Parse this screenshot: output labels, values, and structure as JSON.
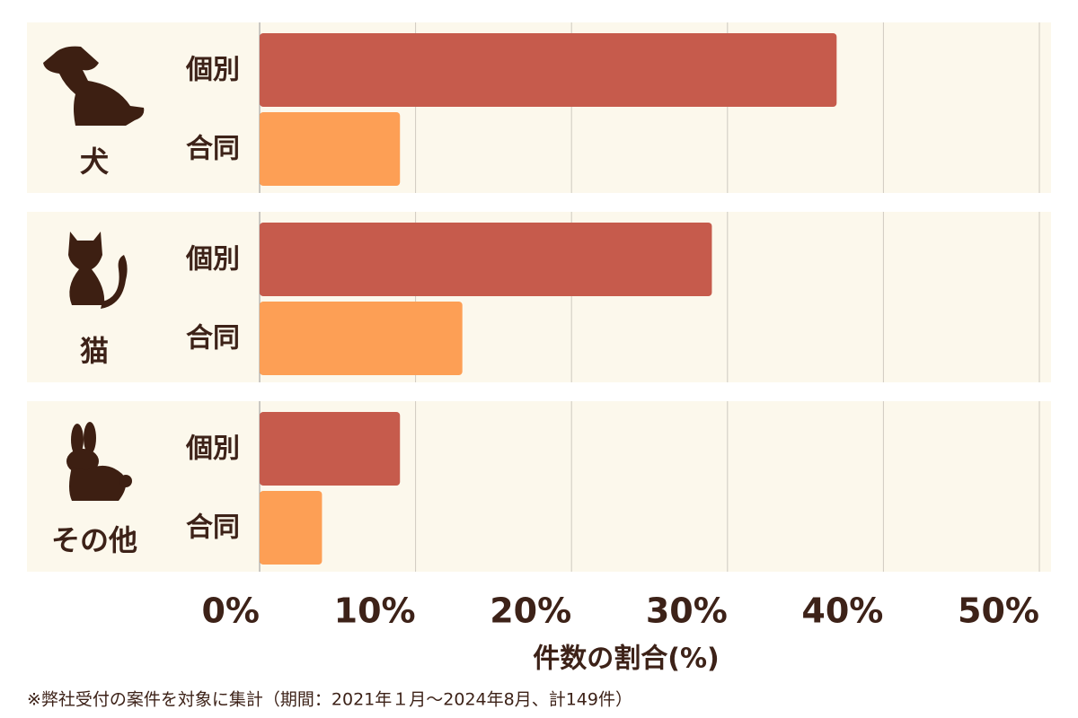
{
  "chart_data": {
    "type": "bar",
    "orientation": "horizontal",
    "categories": [
      "犬",
      "猫",
      "その他"
    ],
    "series": [
      {
        "name": "個別",
        "color": "#c65b4c",
        "values": [
          37,
          29,
          9
        ]
      },
      {
        "name": "合同",
        "color": "#fd9f55",
        "values": [
          9,
          13,
          4
        ]
      }
    ],
    "xlim": [
      0,
      50
    ],
    "xticks": [
      {
        "value": 0,
        "label": "0%"
      },
      {
        "value": 10,
        "label": "10%"
      },
      {
        "value": 20,
        "label": "20%"
      },
      {
        "value": 30,
        "label": "30%"
      },
      {
        "value": 40,
        "label": "40%"
      },
      {
        "value": 50,
        "label": "50%"
      }
    ],
    "grid": true,
    "x_label": "件数の割合(%)",
    "note": "※弊社受付の案件を対象に集計（期間：2021年１月〜2024年8月、計149件）"
  }
}
